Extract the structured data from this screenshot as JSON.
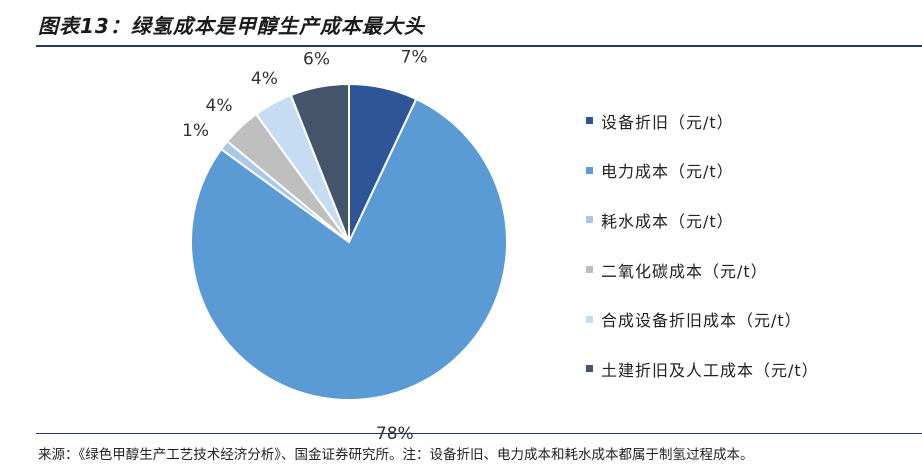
{
  "title": "图表13：绿氢成本是甲醇生产成本最大头",
  "source": "来源：《绿色甲醇生产工艺技术经济分析》、国金证券研究所。注：设备折旧、电力成本和耗水成本都属于制氢过程成本。",
  "chart_data": {
    "type": "pie",
    "legend_position": "right",
    "series": [
      {
        "name": "设备折旧（元/t）",
        "value": 7,
        "label": "7%",
        "color": "#2e5597"
      },
      {
        "name": "电力成本（元/t）",
        "value": 78,
        "label": "78%",
        "color": "#5b9bd5"
      },
      {
        "name": "耗水成本（元/t）",
        "value": 1,
        "label": "1%",
        "color": "#a9c8ea"
      },
      {
        "name": "二氧化碳成本（元/t）",
        "value": 4,
        "label": "4%",
        "color": "#bfbfbf"
      },
      {
        "name": "合成设备折旧成本（元/t）",
        "value": 4,
        "label": "4%",
        "color": "#c5dcf2"
      },
      {
        "name": "土建折旧及人工成本（元/t）",
        "value": 6,
        "label": "6%",
        "color": "#44546a"
      }
    ]
  }
}
